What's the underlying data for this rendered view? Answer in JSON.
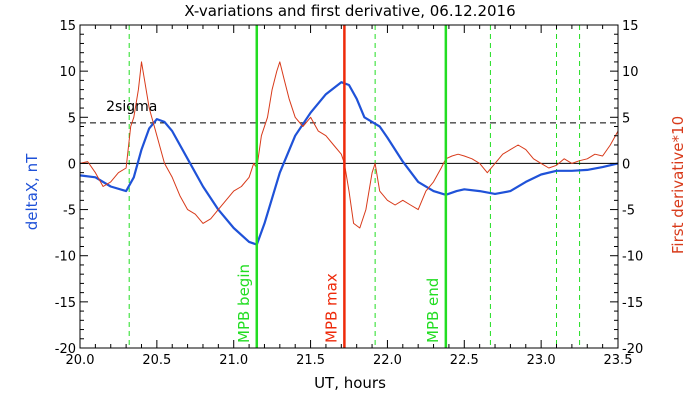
{
  "chart_data": {
    "type": "line",
    "title": "X-variations and first derivative, 06.12.2016",
    "xlabel": "UT, hours",
    "ylabel_left": "deltaX, nT",
    "ylabel_right": "First derivative*10",
    "xlim": [
      20.0,
      23.5
    ],
    "ylim": [
      -20,
      15
    ],
    "x_ticks": [
      "20.0",
      "20.5",
      "21.0",
      "21.5",
      "22.0",
      "22.5",
      "23.0",
      "23.5"
    ],
    "y_ticks": [
      "15",
      "10",
      "5",
      "0",
      "-5",
      "-10",
      "-15",
      "-20"
    ],
    "colors": {
      "deltaX": "#1f52d8",
      "derivative": "#d83a1a",
      "markers_green": "#22dd22",
      "marker_red": "#ee2a0a",
      "axes": "#000000"
    },
    "threshold": {
      "label": "2sigma",
      "value": 4.4
    },
    "zero_line": 0,
    "vertical_markers": [
      {
        "x": 21.15,
        "label": "MPB begin",
        "color": "#22dd22",
        "style": "solid"
      },
      {
        "x": 21.72,
        "label": "MPB max",
        "color": "#ee2a0a",
        "style": "solid"
      },
      {
        "x": 22.38,
        "label": "MPB end",
        "color": "#22dd22",
        "style": "solid"
      }
    ],
    "dashed_lines": [
      20.32,
      21.92,
      22.67,
      23.1,
      23.25
    ],
    "series": [
      {
        "key": "deltaX",
        "x": [
          20.0,
          20.1,
          20.2,
          20.3,
          20.35,
          20.4,
          20.45,
          20.5,
          20.55,
          20.6,
          20.7,
          20.8,
          20.9,
          21.0,
          21.1,
          21.15,
          21.2,
          21.3,
          21.4,
          21.5,
          21.6,
          21.7,
          21.75,
          21.8,
          21.85,
          21.9,
          21.95,
          22.0,
          22.1,
          22.2,
          22.3,
          22.38,
          22.45,
          22.5,
          22.6,
          22.7,
          22.8,
          22.9,
          23.0,
          23.1,
          23.2,
          23.3,
          23.4,
          23.5
        ],
        "values": [
          -1.3,
          -1.5,
          -2.5,
          -3.0,
          -1.5,
          1.5,
          3.8,
          4.8,
          4.5,
          3.5,
          0.5,
          -2.5,
          -5.0,
          -7.0,
          -8.5,
          -8.8,
          -6.5,
          -1.0,
          3.0,
          5.5,
          7.5,
          8.8,
          8.5,
          7.0,
          5.0,
          4.5,
          4.0,
          2.8,
          0.2,
          -2.0,
          -3.0,
          -3.4,
          -3.0,
          -2.8,
          -3.0,
          -3.3,
          -3.0,
          -2.0,
          -1.2,
          -0.8,
          -0.8,
          -0.7,
          -0.4,
          0.0
        ]
      },
      {
        "key": "derivative",
        "x": [
          20.0,
          20.05,
          20.1,
          20.15,
          20.2,
          20.25,
          20.3,
          20.33,
          20.35,
          20.38,
          20.4,
          20.42,
          20.45,
          20.5,
          20.55,
          20.6,
          20.65,
          20.7,
          20.75,
          20.8,
          20.85,
          20.9,
          20.95,
          21.0,
          21.05,
          21.1,
          21.13,
          21.15,
          21.18,
          21.22,
          21.25,
          21.28,
          21.3,
          21.33,
          21.36,
          21.4,
          21.45,
          21.5,
          21.55,
          21.6,
          21.65,
          21.7,
          21.72,
          21.75,
          21.78,
          21.82,
          21.86,
          21.9,
          21.92,
          21.95,
          22.0,
          22.05,
          22.1,
          22.15,
          22.2,
          22.25,
          22.3,
          22.35,
          22.38,
          22.42,
          22.46,
          22.5,
          22.55,
          22.6,
          22.65,
          22.7,
          22.75,
          22.8,
          22.85,
          22.9,
          22.95,
          23.0,
          23.05,
          23.1,
          23.15,
          23.2,
          23.25,
          23.3,
          23.35,
          23.4,
          23.45,
          23.5
        ],
        "values": [
          0.0,
          0.2,
          -1.0,
          -2.5,
          -2.0,
          -1.0,
          -0.5,
          4.0,
          5.0,
          8.0,
          11.0,
          9.0,
          6.0,
          3.0,
          0.0,
          -1.5,
          -3.5,
          -5.0,
          -5.5,
          -6.5,
          -6.0,
          -5.0,
          -4.0,
          -3.0,
          -2.5,
          -1.5,
          0.0,
          -0.5,
          3.0,
          5.0,
          8.0,
          10.0,
          11.0,
          9.0,
          7.0,
          5.0,
          4.0,
          5.0,
          3.5,
          3.0,
          2.0,
          1.0,
          0.0,
          -3.0,
          -6.5,
          -7.0,
          -5.0,
          -1.0,
          0.0,
          -3.0,
          -4.0,
          -4.5,
          -4.0,
          -4.5,
          -5.0,
          -3.0,
          -2.0,
          -0.5,
          0.5,
          0.8,
          1.0,
          0.8,
          0.5,
          0.0,
          -1.0,
          0.0,
          1.0,
          1.5,
          2.0,
          1.5,
          0.5,
          0.0,
          -0.5,
          -0.2,
          0.5,
          0.0,
          0.3,
          0.5,
          1.0,
          0.8,
          2.0,
          3.5
        ]
      }
    ]
  }
}
